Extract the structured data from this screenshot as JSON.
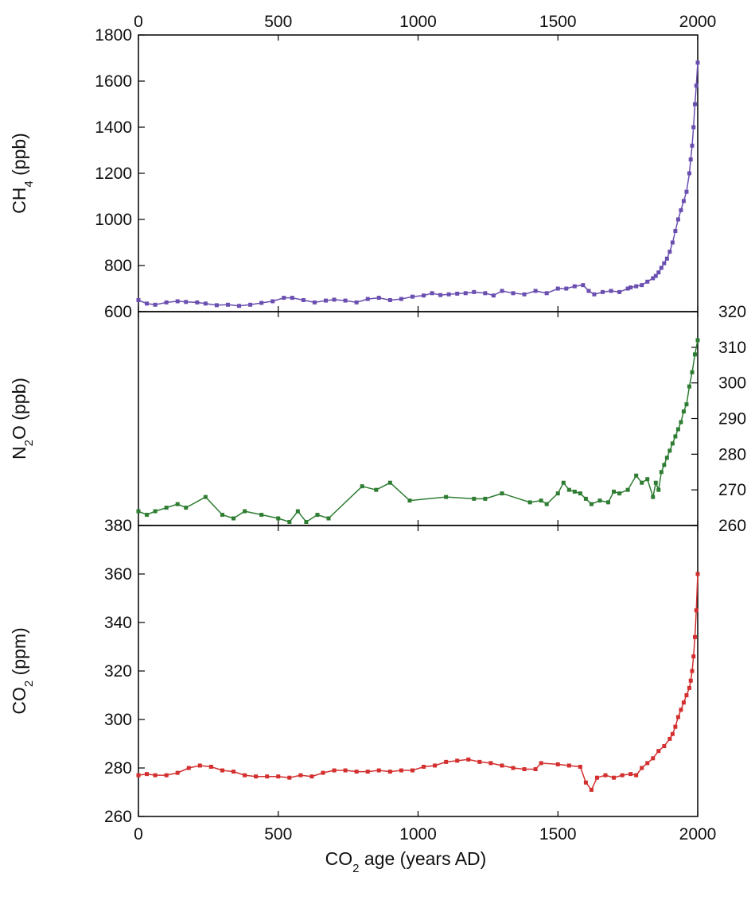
{
  "chart_data": [
    {
      "type": "line",
      "panel": "ch4",
      "ylabel": "CH4 (ppb)",
      "ylabel_parts": [
        "CH",
        "4",
        " (ppb)"
      ],
      "ylim": [
        600,
        1800
      ],
      "yticks": [
        600,
        800,
        1000,
        1200,
        1400,
        1600,
        1800
      ],
      "ytick_side": "left",
      "xlim": [
        0,
        2000
      ],
      "xticks_top": [
        0,
        500,
        1000,
        1500,
        2000
      ],
      "color": "#6a4fb0",
      "series": [
        {
          "x": [
            0,
            30,
            60,
            100,
            140,
            170,
            210,
            240,
            280,
            320,
            360,
            400,
            440,
            480,
            520,
            550,
            590,
            630,
            670,
            700,
            740,
            780,
            820,
            860,
            900,
            940,
            980,
            1020,
            1050,
            1080,
            1110,
            1140,
            1170,
            1200,
            1240,
            1270,
            1300,
            1340,
            1380,
            1420,
            1460,
            1500,
            1530,
            1560,
            1590,
            1610,
            1630,
            1660,
            1690,
            1720,
            1750,
            1760,
            1780,
            1800,
            1820,
            1840,
            1850,
            1860,
            1870,
            1880,
            1890,
            1900,
            1910,
            1920,
            1930,
            1940,
            1950,
            1960,
            1970,
            1975,
            1980,
            1985,
            1990,
            1995,
            2000
          ],
          "y": [
            650,
            635,
            630,
            640,
            645,
            642,
            640,
            635,
            628,
            630,
            625,
            630,
            638,
            645,
            660,
            660,
            650,
            640,
            648,
            652,
            648,
            640,
            655,
            660,
            650,
            655,
            665,
            670,
            680,
            672,
            675,
            678,
            680,
            685,
            680,
            670,
            690,
            680,
            675,
            690,
            680,
            700,
            700,
            710,
            715,
            690,
            675,
            685,
            690,
            685,
            700,
            705,
            710,
            715,
            730,
            745,
            755,
            770,
            790,
            810,
            830,
            860,
            900,
            950,
            1000,
            1040,
            1080,
            1120,
            1200,
            1260,
            1320,
            1400,
            1500,
            1580,
            1680
          ]
        }
      ]
    },
    {
      "type": "line",
      "panel": "n2o",
      "ylabel": "N2O (ppb)",
      "ylabel_parts": [
        "N",
        "2",
        "O (ppb)"
      ],
      "ylim": [
        260,
        320
      ],
      "yticks": [
        260,
        270,
        280,
        290,
        300,
        310,
        320
      ],
      "ytick_side": "right",
      "xlim": [
        0,
        2000
      ],
      "color": "#2e7d32",
      "series": [
        {
          "x": [
            0,
            30,
            60,
            100,
            140,
            170,
            240,
            300,
            340,
            380,
            440,
            500,
            540,
            570,
            600,
            640,
            680,
            800,
            850,
            900,
            970,
            1100,
            1200,
            1240,
            1300,
            1400,
            1440,
            1460,
            1500,
            1520,
            1540,
            1560,
            1580,
            1600,
            1620,
            1650,
            1680,
            1700,
            1720,
            1750,
            1780,
            1800,
            1820,
            1840,
            1850,
            1860,
            1870,
            1880,
            1890,
            1900,
            1910,
            1920,
            1930,
            1940,
            1950,
            1960,
            1970,
            1980,
            1990,
            2000
          ],
          "y": [
            264,
            263,
            264,
            265,
            266,
            265,
            268,
            263,
            262,
            264,
            263,
            262,
            261,
            264,
            261,
            263,
            262,
            271,
            270,
            272,
            267,
            268,
            267.5,
            267.5,
            269,
            266.5,
            267,
            266,
            269,
            272,
            270,
            269.5,
            269,
            267.5,
            266,
            267,
            266.5,
            269.5,
            269,
            270,
            274,
            272,
            273,
            268,
            272,
            270,
            275,
            277,
            279,
            281,
            283,
            285,
            287,
            289,
            292,
            294,
            299,
            303,
            308,
            312
          ]
        }
      ]
    },
    {
      "type": "line",
      "panel": "co2",
      "title": "",
      "xlabel": "CO2 age (years AD)",
      "xlabel_parts": [
        "CO",
        "2",
        " age (years AD)"
      ],
      "ylabel": "CO2 (ppm)",
      "ylabel_parts": [
        "CO",
        "2",
        " (ppm)"
      ],
      "ylim": [
        260,
        380
      ],
      "yticks": [
        260,
        280,
        300,
        320,
        340,
        360,
        380
      ],
      "ytick_side": "left",
      "xlim": [
        0,
        2000
      ],
      "xticks_bottom": [
        0,
        500,
        1000,
        1500,
        2000
      ],
      "color": "#d32f2f",
      "series": [
        {
          "x": [
            0,
            30,
            60,
            100,
            140,
            180,
            220,
            260,
            300,
            340,
            380,
            420,
            460,
            500,
            540,
            580,
            620,
            660,
            700,
            740,
            780,
            820,
            860,
            900,
            940,
            980,
            1020,
            1060,
            1100,
            1140,
            1180,
            1220,
            1260,
            1300,
            1340,
            1380,
            1420,
            1440,
            1500,
            1540,
            1580,
            1600,
            1620,
            1640,
            1670,
            1700,
            1730,
            1760,
            1780,
            1800,
            1820,
            1840,
            1860,
            1880,
            1900,
            1910,
            1920,
            1930,
            1940,
            1950,
            1960,
            1970,
            1975,
            1980,
            1985,
            1990,
            1995,
            2000
          ],
          "y": [
            277,
            277.5,
            277,
            277,
            278,
            280,
            281,
            280.5,
            279,
            278.5,
            277,
            276.5,
            276.5,
            276.5,
            276,
            277,
            276.5,
            278,
            279,
            279,
            278.5,
            278.5,
            279,
            278.5,
            279,
            279,
            280.5,
            281,
            282.5,
            283,
            283.5,
            282.5,
            282,
            281,
            280,
            279.5,
            279.5,
            282,
            281.5,
            281,
            280.5,
            274,
            271,
            276,
            277,
            276,
            277,
            277.5,
            277,
            280,
            282,
            284,
            287,
            289,
            292,
            294,
            297,
            301,
            304,
            307,
            310,
            313,
            316,
            320,
            326,
            334,
            345,
            360
          ]
        }
      ]
    }
  ],
  "top_axis_ticks": [
    "0",
    "500",
    "1000",
    "1500",
    "2000"
  ],
  "bottom_axis_ticks": [
    "0",
    "500",
    "1000",
    "1500",
    "2000"
  ]
}
